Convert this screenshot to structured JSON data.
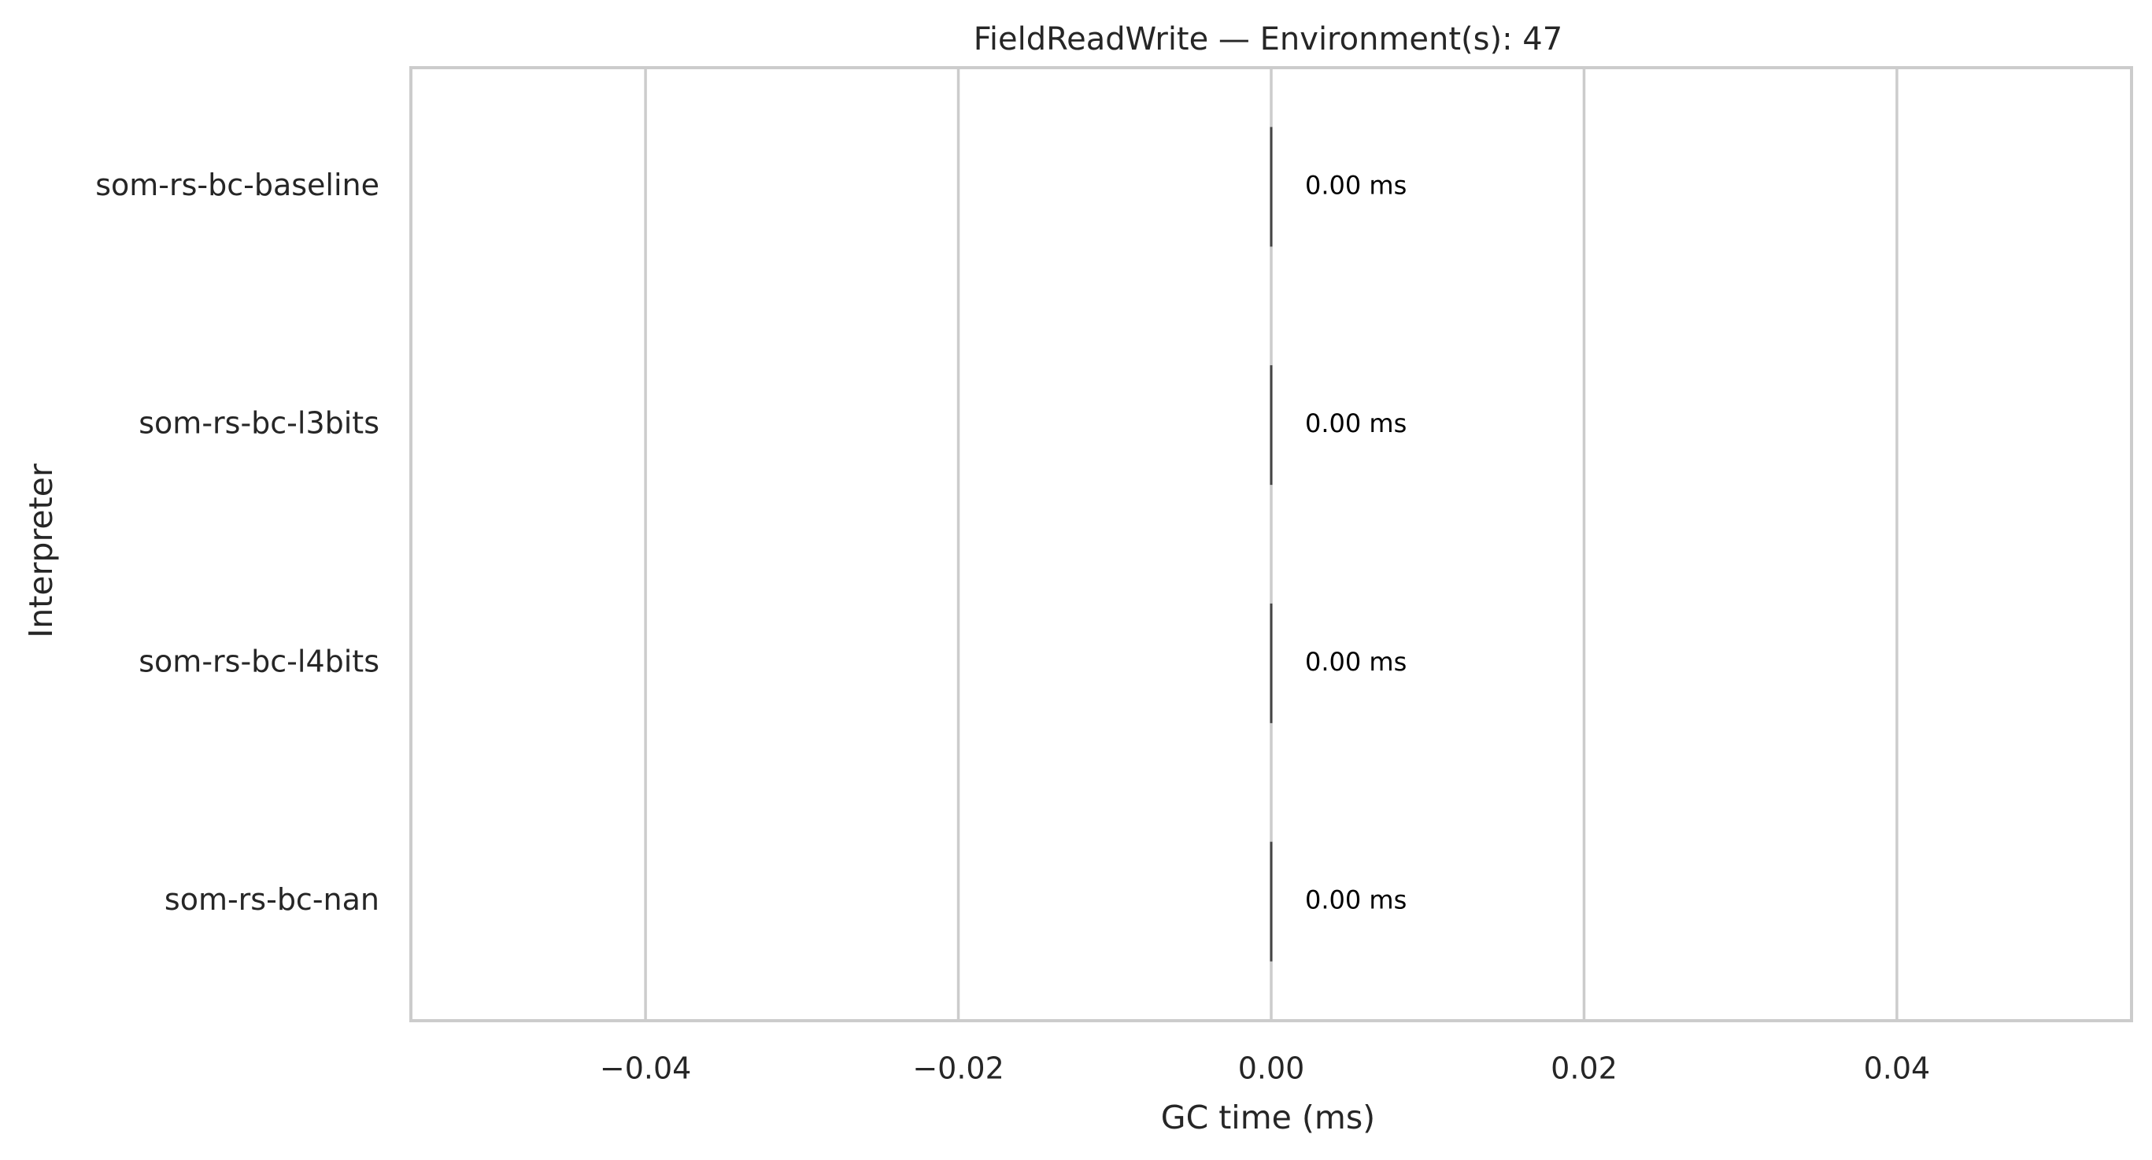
{
  "chart_data": {
    "type": "bar",
    "orientation": "horizontal",
    "title": "FieldReadWrite — Environment(s): 47",
    "xlabel": "GC time (ms)",
    "ylabel": "Interpreter",
    "categories": [
      "som-rs-bc-baseline",
      "som-rs-bc-l3bits",
      "som-rs-bc-l4bits",
      "som-rs-bc-nan"
    ],
    "values": [
      0.0,
      0.0,
      0.0,
      0.0
    ],
    "value_labels": [
      "0.00 ms",
      "0.00 ms",
      "0.00 ms",
      "0.00 ms"
    ],
    "xlim": [
      -0.055,
      0.055
    ],
    "xticks": [
      -0.04,
      -0.02,
      0.0,
      0.02,
      0.04
    ],
    "xtick_labels": [
      "−0.04",
      "−0.02",
      "0.00",
      "0.02",
      "0.04"
    ],
    "grid": "vertical",
    "legend": "none",
    "colors": {
      "grid": "#cccccc",
      "spine": "#cccccc",
      "bar_edge": "#444444",
      "text": "#262626",
      "value_label": "#000000"
    }
  }
}
